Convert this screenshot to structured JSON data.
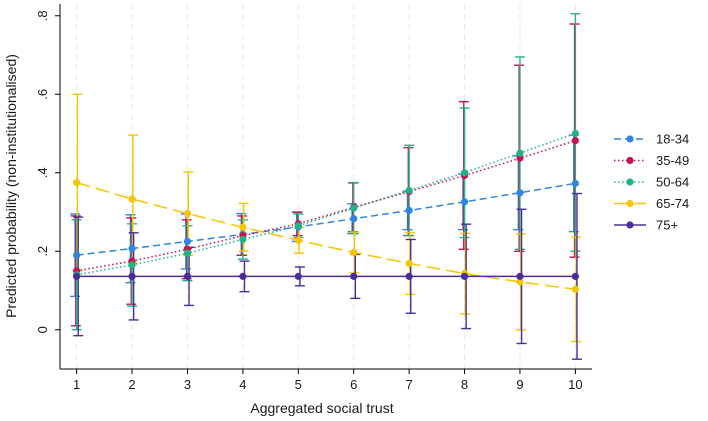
{
  "chart_data": {
    "type": "line",
    "title": "",
    "xlabel": "Aggregated social trust",
    "ylabel": "Predicted probability (non-institutionalised)",
    "x": [
      1,
      2,
      3,
      4,
      5,
      6,
      7,
      8,
      9,
      10
    ],
    "xlim": [
      0.7,
      10.3
    ],
    "ylim": [
      -0.1,
      0.83
    ],
    "xticks": [
      1,
      2,
      3,
      4,
      5,
      6,
      7,
      8,
      9,
      10
    ],
    "yticks": [
      {
        "value": 0,
        "label": "0"
      },
      {
        "value": 0.2,
        "label": ".2"
      },
      {
        "value": 0.4,
        "label": ".4"
      },
      {
        "value": 0.6,
        "label": ".6"
      },
      {
        "value": 0.8,
        "label": ".8"
      }
    ],
    "grid": "vertical dashed at x ticks",
    "legend_position": "right",
    "series": [
      {
        "name": "18-34",
        "color": "#2f86e0",
        "line_style": "dashed",
        "values": [
          0.19,
          0.207,
          0.225,
          0.243,
          0.262,
          0.283,
          0.304,
          0.326,
          0.349,
          0.373
        ],
        "lower": [
          0.085,
          0.12,
          0.155,
          0.19,
          0.225,
          0.245,
          0.255,
          0.255,
          0.255,
          0.25
        ],
        "upper": [
          0.295,
          0.293,
          0.295,
          0.296,
          0.299,
          0.321,
          0.353,
          0.397,
          0.443,
          0.496
        ]
      },
      {
        "name": "35-49",
        "color": "#c8144d",
        "line_style": "dotted",
        "values": [
          0.15,
          0.175,
          0.205,
          0.24,
          0.27,
          0.312,
          0.352,
          0.393,
          0.437,
          0.482
        ],
        "lower": [
          0.01,
          0.065,
          0.13,
          0.19,
          0.24,
          0.25,
          0.24,
          0.205,
          0.2,
          0.185
        ],
        "upper": [
          0.29,
          0.285,
          0.28,
          0.29,
          0.3,
          0.374,
          0.464,
          0.581,
          0.674,
          0.779
        ]
      },
      {
        "name": "50-64",
        "color": "#1fb487",
        "line_style": "dotted",
        "values": [
          0.14,
          0.165,
          0.195,
          0.23,
          0.265,
          0.31,
          0.355,
          0.4,
          0.45,
          0.5
        ],
        "lower": [
          0.0,
          0.06,
          0.125,
          0.18,
          0.235,
          0.245,
          0.24,
          0.235,
          0.205,
          0.2
        ],
        "upper": [
          0.28,
          0.27,
          0.265,
          0.28,
          0.295,
          0.375,
          0.47,
          0.565,
          0.695,
          0.805
        ]
      },
      {
        "name": "65-74",
        "color": "#f5c500",
        "line_style": "long-dashed",
        "values": [
          0.375,
          0.333,
          0.296,
          0.261,
          0.228,
          0.197,
          0.169,
          0.143,
          0.122,
          0.103
        ],
        "lower": [
          0.15,
          0.17,
          0.19,
          0.2,
          0.195,
          0.145,
          0.09,
          0.04,
          0.0,
          -0.03
        ],
        "upper": [
          0.6,
          0.496,
          0.402,
          0.322,
          0.261,
          0.249,
          0.248,
          0.246,
          0.244,
          0.236
        ]
      },
      {
        "name": "75+",
        "color": "#4b2c9a",
        "line_style": "solid",
        "values": [
          0.136,
          0.136,
          0.136,
          0.136,
          0.136,
          0.136,
          0.136,
          0.136,
          0.136,
          0.136
        ],
        "lower": [
          -0.015,
          0.025,
          0.062,
          0.097,
          0.112,
          0.08,
          0.042,
          0.003,
          -0.035,
          -0.075
        ],
        "upper": [
          0.287,
          0.247,
          0.21,
          0.175,
          0.16,
          0.192,
          0.23,
          0.269,
          0.307,
          0.347
        ]
      }
    ]
  }
}
